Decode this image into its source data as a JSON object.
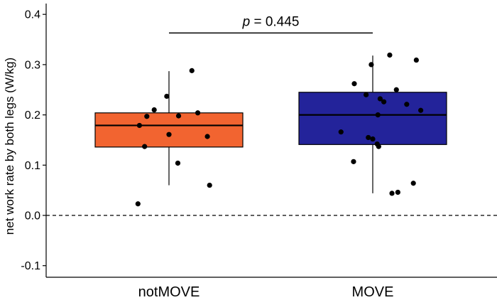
{
  "chart_data": {
    "type": "box",
    "ylabel": "net work rate by both legs (W/kg)",
    "xlabel": "",
    "ylim": [
      -0.12,
      0.42
    ],
    "yticks": [
      -0.1,
      0.0,
      0.1,
      0.2,
      0.3,
      0.4
    ],
    "ytick_labels": [
      "-0.1",
      "0.0",
      "0.1",
      "0.2",
      "0.3",
      "0.4"
    ],
    "grid": false,
    "reference_line": {
      "y": 0.0,
      "style": "dashed"
    },
    "categories": [
      "notMOVE",
      "MOVE"
    ],
    "boxes": [
      {
        "name": "notMOVE",
        "color": "#f26430",
        "whisker_low": 0.06,
        "q1": 0.136,
        "median": 0.179,
        "q3": 0.204,
        "whisker_high": 0.287,
        "points": [
          {
            "offset": -0.42,
            "y": 0.023
          },
          {
            "offset": -0.4,
            "y": 0.179
          },
          {
            "offset": -0.33,
            "y": 0.137
          },
          {
            "offset": -0.3,
            "y": 0.197
          },
          {
            "offset": -0.2,
            "y": 0.21
          },
          {
            "offset": -0.03,
            "y": 0.237
          },
          {
            "offset": 0.0,
            "y": 0.161
          },
          {
            "offset": 0.12,
            "y": 0.104
          },
          {
            "offset": 0.13,
            "y": 0.198
          },
          {
            "offset": 0.31,
            "y": 0.288
          },
          {
            "offset": 0.39,
            "y": 0.204
          },
          {
            "offset": 0.52,
            "y": 0.157
          },
          {
            "offset": 0.55,
            "y": 0.06
          }
        ]
      },
      {
        "name": "MOVE",
        "color": "#23239a",
        "whisker_low": 0.044,
        "q1": 0.141,
        "median": 0.2,
        "q3": 0.245,
        "whisker_high": 0.318,
        "points": [
          {
            "offset": -0.43,
            "y": 0.166
          },
          {
            "offset": -0.26,
            "y": 0.107
          },
          {
            "offset": -0.25,
            "y": 0.262
          },
          {
            "offset": -0.09,
            "y": 0.24
          },
          {
            "offset": -0.06,
            "y": 0.155
          },
          {
            "offset": -0.02,
            "y": 0.3
          },
          {
            "offset": 0.0,
            "y": 0.152
          },
          {
            "offset": 0.06,
            "y": 0.142
          },
          {
            "offset": 0.07,
            "y": 0.2
          },
          {
            "offset": 0.08,
            "y": 0.137
          },
          {
            "offset": 0.1,
            "y": 0.232
          },
          {
            "offset": 0.15,
            "y": 0.226
          },
          {
            "offset": 0.23,
            "y": 0.319
          },
          {
            "offset": 0.26,
            "y": 0.044
          },
          {
            "offset": 0.32,
            "y": 0.25
          },
          {
            "offset": 0.34,
            "y": 0.046
          },
          {
            "offset": 0.46,
            "y": 0.221
          },
          {
            "offset": 0.55,
            "y": 0.064
          },
          {
            "offset": 0.59,
            "y": 0.309
          },
          {
            "offset": 0.65,
            "y": 0.209
          }
        ]
      }
    ],
    "annotation": {
      "p_symbol": "p",
      "text": " = 0.445",
      "y": 0.363
    }
  }
}
